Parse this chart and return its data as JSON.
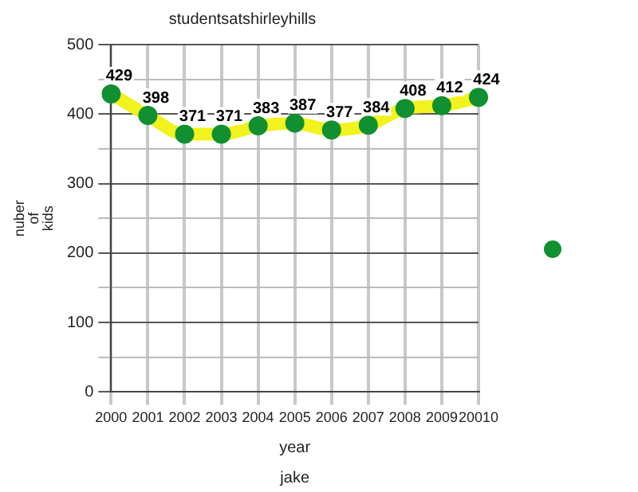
{
  "chart_data": {
    "type": "line",
    "title": "studentsatshirleyhills",
    "xlabel": "year",
    "ylabel": "nuber of kids",
    "annotations": [
      "jake"
    ],
    "categories": [
      "2000",
      "2001",
      "2002",
      "2003",
      "2004",
      "2005",
      "2006",
      "2007",
      "2008",
      "2009",
      "20010"
    ],
    "series": [
      {
        "color": "#f2f21e",
        "values": [
          429,
          398,
          371,
          371,
          383,
          387,
          377,
          384,
          408,
          412,
          424
        ]
      }
    ],
    "marker": "circle",
    "data_labels": true,
    "grid": true,
    "ylim": [
      0,
      500
    ],
    "yticks": [
      0,
      {
        "value": 50,
        "label": null
      },
      100,
      {
        "value": 150,
        "label": null
      },
      200,
      {
        "value": 250,
        "label": null
      },
      300,
      {
        "value": 350,
        "label": null
      },
      400,
      {
        "value": 450,
        "label": null
      },
      500
    ]
  }
}
